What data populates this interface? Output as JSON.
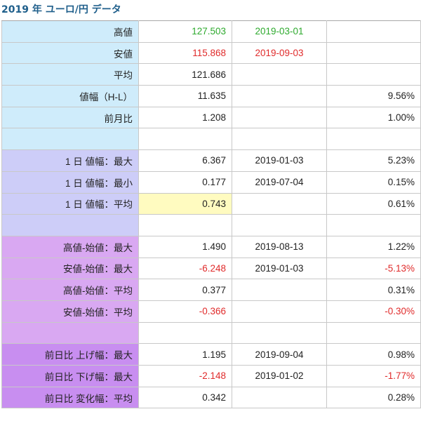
{
  "title": "2019 年 ユーロ/円 データ",
  "colors": {
    "label_blue": "#cfecfb",
    "label_lavender": "#cdcdf8",
    "label_purple": "#d9a8f2",
    "label_magenta": "#c88ef0",
    "highlight_yellow": "#fffbc0",
    "positive_green": "#2eaa2e",
    "negative_red": "#e02b2b",
    "title_color": "#1f5f8b"
  },
  "rows": [
    {
      "label": "高値",
      "value": "127.503",
      "date": "2019-03-01",
      "pct": "",
      "group": "blue",
      "value_color": "green",
      "date_color": "green"
    },
    {
      "label": "安値",
      "value": "115.868",
      "date": "2019-09-03",
      "pct": "",
      "group": "blue",
      "value_color": "red",
      "date_color": "red"
    },
    {
      "label": "平均",
      "value": "121.686",
      "date": "",
      "pct": "",
      "group": "blue"
    },
    {
      "label": "値幅（H-L）",
      "value": "11.635",
      "date": "",
      "pct": "9.56%",
      "group": "blue"
    },
    {
      "label": "前月比",
      "value": "1.208",
      "date": "",
      "pct": "1.00%",
      "group": "blue"
    },
    {
      "label": "",
      "value": "",
      "date": "",
      "pct": "",
      "group": "blue"
    },
    {
      "label": "1 日 値幅：最大",
      "value": "6.367",
      "date": "2019-01-03",
      "pct": "5.23%",
      "group": "lavender"
    },
    {
      "label": "1 日 値幅：最小",
      "value": "0.177",
      "date": "2019-07-04",
      "pct": "0.15%",
      "group": "lavender"
    },
    {
      "label": "1 日 値幅：平均",
      "value": "0.743",
      "date": "",
      "pct": "0.61%",
      "group": "lavender",
      "value_highlight": true
    },
    {
      "label": "",
      "value": "",
      "date": "",
      "pct": "",
      "group": "lavender"
    },
    {
      "label": "高値-始値：最大",
      "value": "1.490",
      "date": "2019-08-13",
      "pct": "1.22%",
      "group": "purple"
    },
    {
      "label": "安値-始値：最大",
      "value": "-6.248",
      "date": "2019-01-03",
      "pct": "-5.13%",
      "group": "purple",
      "value_color": "red",
      "pct_color": "red"
    },
    {
      "label": "高値-始値：平均",
      "value": "0.377",
      "date": "",
      "pct": "0.31%",
      "group": "purple"
    },
    {
      "label": "安値-始値：平均",
      "value": "-0.366",
      "date": "",
      "pct": "-0.30%",
      "group": "purple",
      "value_color": "red",
      "pct_color": "red"
    },
    {
      "label": "",
      "value": "",
      "date": "",
      "pct": "",
      "group": "purple"
    },
    {
      "label": "前日比 上げ幅：最大",
      "value": "1.195",
      "date": "2019-09-04",
      "pct": "0.98%",
      "group": "magenta"
    },
    {
      "label": "前日比 下げ幅：最大",
      "value": "-2.148",
      "date": "2019-01-02",
      "pct": "-1.77%",
      "group": "magenta",
      "value_color": "red",
      "pct_color": "red"
    },
    {
      "label": "前日比 変化幅：平均",
      "value": "0.342",
      "date": "",
      "pct": "0.28%",
      "group": "magenta"
    }
  ]
}
